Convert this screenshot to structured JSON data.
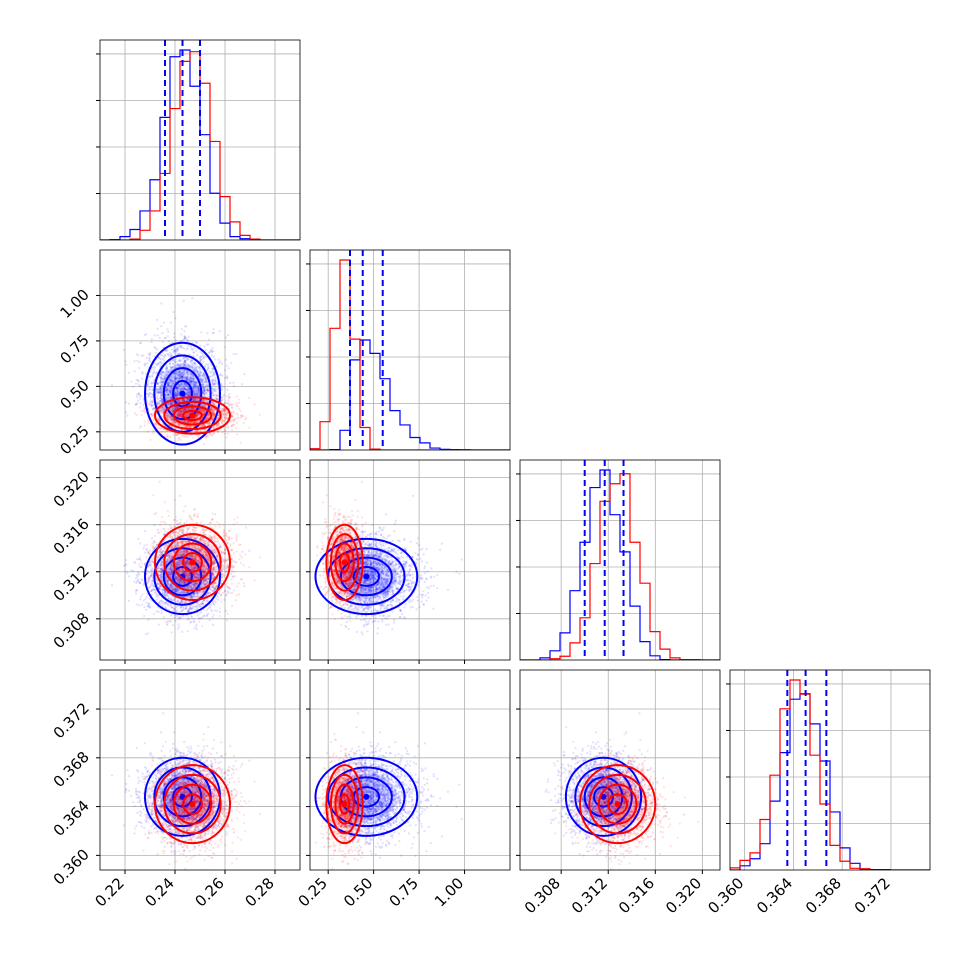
{
  "chart_data": {
    "type": "scatter",
    "title": "",
    "parameters": [
      {
        "range": [
          0.21,
          0.29
        ],
        "ticks": [
          "0.22",
          "0.24",
          "0.26",
          "0.28"
        ],
        "tick_values": [
          0.22,
          0.24,
          0.26,
          0.28
        ]
      },
      {
        "range": [
          0.15,
          1.25
        ],
        "ticks": [
          "0.25",
          "0.50",
          "0.75",
          "1.00"
        ],
        "tick_values": [
          0.25,
          0.5,
          0.75,
          1.0
        ]
      },
      {
        "range": [
          0.3045,
          0.3215
        ],
        "ticks": [
          "0.308",
          "0.312",
          "0.316",
          "0.320"
        ],
        "tick_values": [
          0.308,
          0.312,
          0.316,
          0.32
        ]
      },
      {
        "range": [
          0.3588,
          0.3752
        ],
        "ticks": [
          "0.360",
          "0.364",
          "0.368",
          "0.372"
        ],
        "tick_values": [
          0.36,
          0.364,
          0.368,
          0.372
        ]
      }
    ],
    "series": [
      {
        "color": "#0000ff",
        "mean": [
          0.243,
          0.46,
          0.3116,
          0.3648
        ],
        "sd": [
          0.0075,
          0.14,
          0.0016,
          0.0016
        ],
        "quantile_lines": [
          [
            0.236,
            0.243,
            0.25
          ],
          [
            0.37,
            0.44,
            0.55
          ],
          [
            0.31,
            0.3117,
            0.3133
          ],
          [
            0.3635,
            0.365,
            0.3667
          ]
        ]
      },
      {
        "color": "#ff0000",
        "mean": [
          0.247,
          0.34,
          0.3128,
          0.3642
        ],
        "sd": [
          0.0075,
          0.05,
          0.0016,
          0.0016
        ]
      }
    ],
    "histogram_bins": 20,
    "grid": true,
    "legend": "none"
  }
}
